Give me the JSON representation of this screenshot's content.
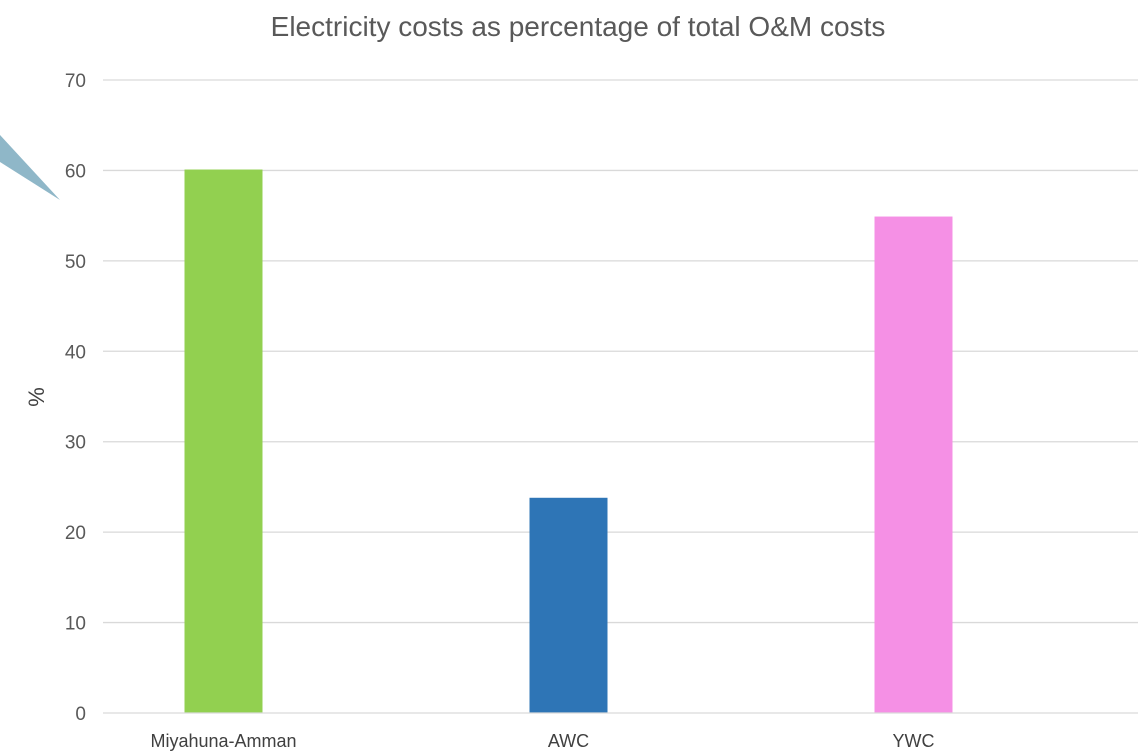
{
  "chart_data": {
    "type": "bar",
    "title": "Electricity costs as percentage of total O&M costs",
    "xlabel": "",
    "ylabel": "%",
    "categories": [
      "Miyahuna-Amman",
      "AWC",
      "YWC"
    ],
    "values": [
      60.1,
      23.8,
      54.9
    ],
    "colors": [
      "#92d050",
      "#2e75b6",
      "#f590e5"
    ],
    "ylim": [
      0,
      70
    ],
    "yticks": [
      0,
      10,
      20,
      30,
      40,
      50,
      60,
      70
    ],
    "grid": true,
    "legend": "none"
  },
  "decoration": {
    "callout_color": "#8fb7c8"
  }
}
